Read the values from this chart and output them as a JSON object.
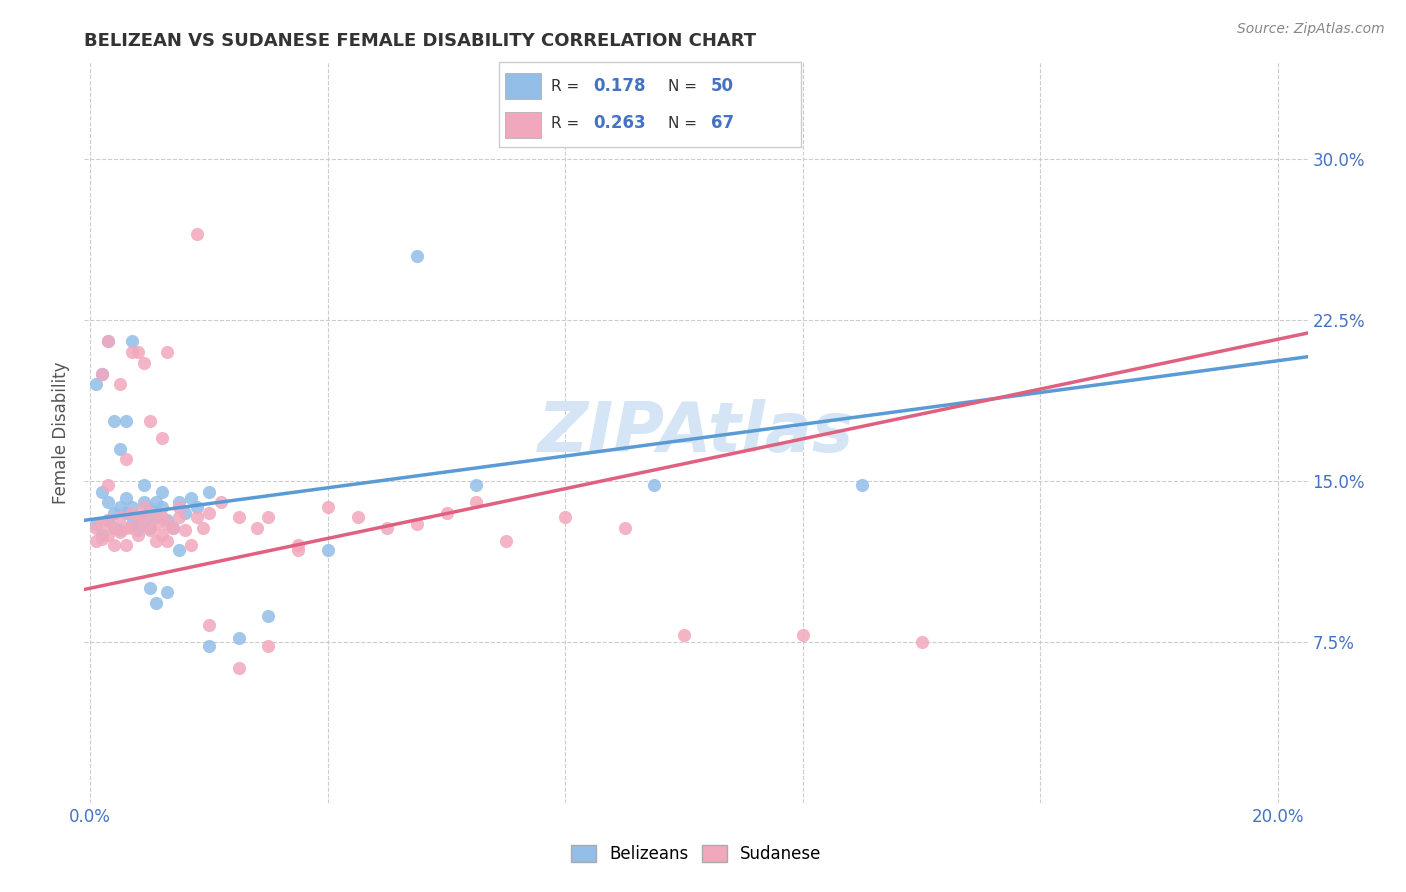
{
  "title": "BELIZEAN VS SUDANESE FEMALE DISABILITY CORRELATION CHART",
  "source": "Source: ZipAtlas.com",
  "ylabel": "Female Disability",
  "belizean_color": "#92BEE8",
  "sudanese_color": "#F2A8BC",
  "belizean_R": 0.178,
  "belizean_N": 50,
  "sudanese_R": 0.263,
  "sudanese_N": 67,
  "belizean_line_color": "#5B9BD5",
  "sudanese_line_color": "#E06080",
  "watermark": "ZIPAtlas",
  "watermark_color": "#D5E5F5",
  "legend_label_1": "Belizeans",
  "legend_label_2": "Sudanese",
  "accent_color": "#4472C4",
  "xlim": [
    0.0,
    0.2
  ],
  "ylim": [
    0.0,
    0.34
  ],
  "x_ticks": [
    0.0,
    0.04,
    0.08,
    0.12,
    0.16,
    0.2
  ],
  "y_ticks": [
    0.075,
    0.15,
    0.225,
    0.3
  ],
  "y_tick_labels": [
    "7.5%",
    "15.0%",
    "22.5%",
    "30.0%"
  ],
  "belizean_x": [
    0.001,
    0.002,
    0.002,
    0.003,
    0.003,
    0.004,
    0.004,
    0.005,
    0.005,
    0.006,
    0.006,
    0.007,
    0.007,
    0.008,
    0.008,
    0.009,
    0.009,
    0.01,
    0.01,
    0.011,
    0.011,
    0.012,
    0.012,
    0.013,
    0.014,
    0.015,
    0.016,
    0.017,
    0.018,
    0.02,
    0.001,
    0.002,
    0.003,
    0.004,
    0.005,
    0.006,
    0.007,
    0.009,
    0.01,
    0.011,
    0.013,
    0.015,
    0.02,
    0.025,
    0.03,
    0.04,
    0.055,
    0.065,
    0.095,
    0.13
  ],
  "belizean_y": [
    0.13,
    0.125,
    0.145,
    0.132,
    0.14,
    0.135,
    0.128,
    0.138,
    0.127,
    0.135,
    0.142,
    0.13,
    0.138,
    0.133,
    0.127,
    0.14,
    0.132,
    0.137,
    0.128,
    0.14,
    0.133,
    0.138,
    0.145,
    0.132,
    0.128,
    0.14,
    0.135,
    0.142,
    0.138,
    0.145,
    0.195,
    0.2,
    0.215,
    0.178,
    0.165,
    0.178,
    0.215,
    0.148,
    0.1,
    0.093,
    0.098,
    0.118,
    0.073,
    0.077,
    0.087,
    0.118,
    0.255,
    0.148,
    0.148,
    0.148
  ],
  "sudanese_x": [
    0.001,
    0.001,
    0.002,
    0.002,
    0.003,
    0.003,
    0.004,
    0.004,
    0.005,
    0.005,
    0.006,
    0.006,
    0.007,
    0.007,
    0.008,
    0.008,
    0.009,
    0.009,
    0.01,
    0.01,
    0.011,
    0.011,
    0.012,
    0.012,
    0.013,
    0.013,
    0.014,
    0.015,
    0.016,
    0.017,
    0.018,
    0.019,
    0.02,
    0.022,
    0.025,
    0.028,
    0.03,
    0.035,
    0.04,
    0.045,
    0.05,
    0.055,
    0.06,
    0.065,
    0.07,
    0.08,
    0.09,
    0.1,
    0.12,
    0.14,
    0.002,
    0.003,
    0.005,
    0.007,
    0.009,
    0.012,
    0.015,
    0.02,
    0.025,
    0.035,
    0.003,
    0.006,
    0.008,
    0.01,
    0.013,
    0.018,
    0.03
  ],
  "sudanese_y": [
    0.128,
    0.122,
    0.13,
    0.123,
    0.132,
    0.125,
    0.128,
    0.12,
    0.133,
    0.126,
    0.128,
    0.12,
    0.135,
    0.128,
    0.133,
    0.125,
    0.138,
    0.13,
    0.135,
    0.127,
    0.13,
    0.122,
    0.133,
    0.125,
    0.13,
    0.122,
    0.128,
    0.133,
    0.127,
    0.12,
    0.133,
    0.128,
    0.135,
    0.14,
    0.133,
    0.128,
    0.133,
    0.12,
    0.138,
    0.133,
    0.128,
    0.13,
    0.135,
    0.14,
    0.122,
    0.133,
    0.128,
    0.078,
    0.078,
    0.075,
    0.2,
    0.215,
    0.195,
    0.21,
    0.205,
    0.17,
    0.138,
    0.083,
    0.063,
    0.118,
    0.148,
    0.16,
    0.21,
    0.178,
    0.21,
    0.265,
    0.073
  ]
}
